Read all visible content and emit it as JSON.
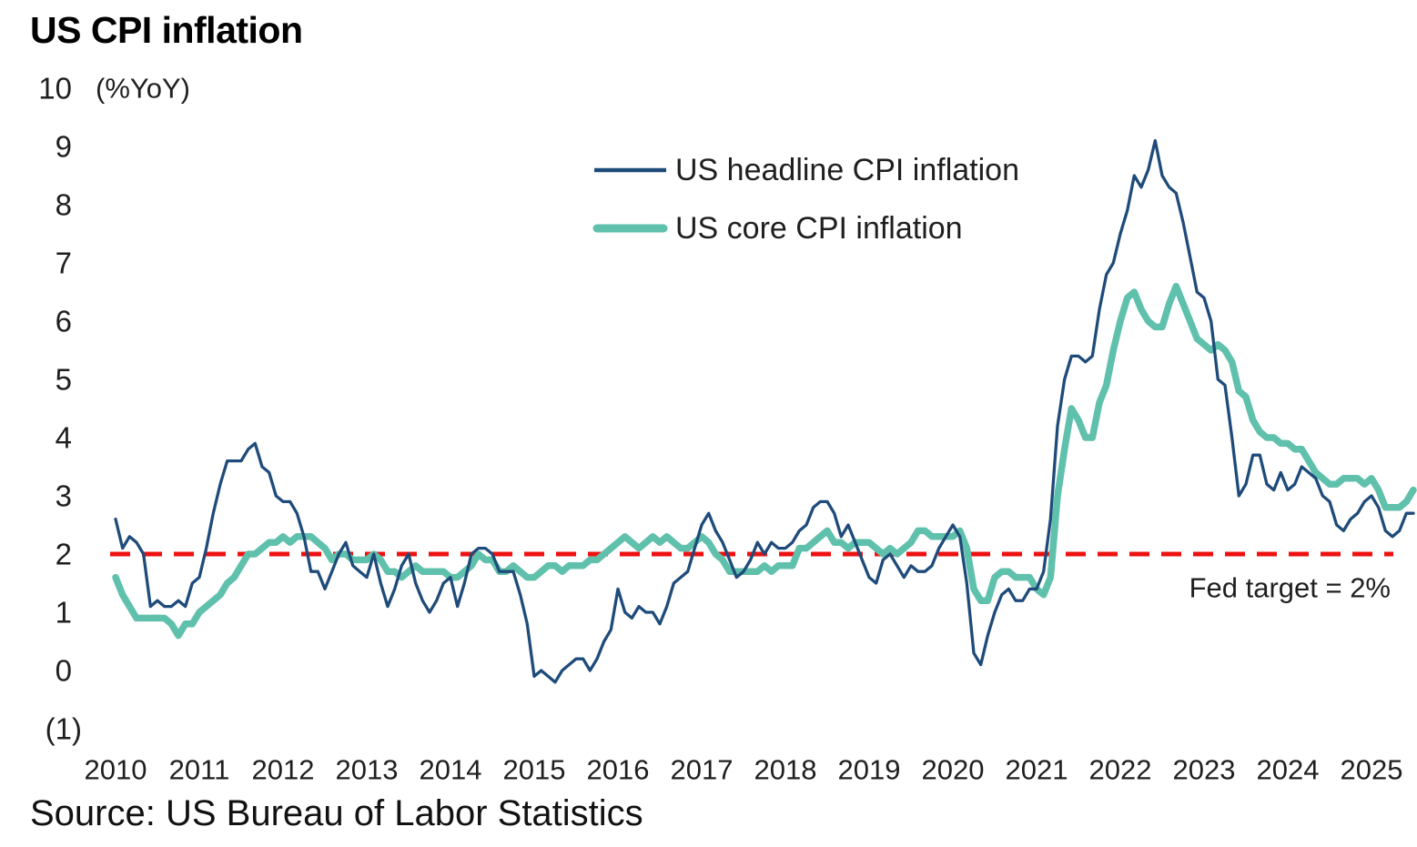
{
  "header": {
    "title": "US CPI inflation"
  },
  "source": {
    "text": "Source: US Bureau of Labor Statistics"
  },
  "chart_data": {
    "type": "line",
    "title": "US CPI inflation",
    "y_unit_label": "(%YoY)",
    "xlabel": "",
    "ylabel": "%YoY",
    "ylim": [
      -1,
      10
    ],
    "grid": false,
    "legend_position": "top-center-inside",
    "y_ticks": [
      {
        "label": "10",
        "value": 10
      },
      {
        "label": "9",
        "value": 9
      },
      {
        "label": "8",
        "value": 8
      },
      {
        "label": "7",
        "value": 7
      },
      {
        "label": "6",
        "value": 6
      },
      {
        "label": "5",
        "value": 5
      },
      {
        "label": "4",
        "value": 4
      },
      {
        "label": "3",
        "value": 3
      },
      {
        "label": "2",
        "value": 2
      },
      {
        "label": "1",
        "value": 1
      },
      {
        "label": "0",
        "value": 0
      },
      {
        "label": "(1)",
        "value": -1
      }
    ],
    "x_tick_labels": [
      "2010",
      "2011",
      "2012",
      "2013",
      "2014",
      "2015",
      "2016",
      "2017",
      "2018",
      "2019",
      "2020",
      "2021",
      "2022",
      "2023",
      "2024",
      "2025"
    ],
    "x_start_month": "2010-01",
    "x_end_month": "2025-07",
    "fed_target": {
      "value": 2,
      "label": "Fed target = 2%",
      "color": "#ee1111",
      "style": "dashed"
    },
    "colors": {
      "headline": "#1e4b7a",
      "core": "#5fc0ac",
      "fed_line": "#ee1111"
    },
    "series": [
      {
        "name": "US headline CPI inflation",
        "color": "#1e4b7a",
        "values": [
          2.6,
          2.1,
          2.3,
          2.2,
          2.0,
          1.1,
          1.2,
          1.1,
          1.1,
          1.2,
          1.1,
          1.5,
          1.6,
          2.1,
          2.7,
          3.2,
          3.6,
          3.6,
          3.6,
          3.8,
          3.9,
          3.5,
          3.4,
          3.0,
          2.9,
          2.9,
          2.7,
          2.3,
          1.7,
          1.7,
          1.4,
          1.7,
          2.0,
          2.2,
          1.8,
          1.7,
          1.6,
          2.0,
          1.5,
          1.1,
          1.4,
          1.8,
          2.0,
          1.5,
          1.2,
          1.0,
          1.2,
          1.5,
          1.6,
          1.1,
          1.5,
          2.0,
          2.1,
          2.1,
          2.0,
          1.7,
          1.7,
          1.7,
          1.3,
          0.8,
          -0.1,
          0.0,
          -0.1,
          -0.2,
          0.0,
          0.1,
          0.2,
          0.2,
          0.0,
          0.2,
          0.5,
          0.7,
          1.4,
          1.0,
          0.9,
          1.1,
          1.0,
          1.0,
          0.8,
          1.1,
          1.5,
          1.6,
          1.7,
          2.1,
          2.5,
          2.7,
          2.4,
          2.2,
          1.9,
          1.6,
          1.7,
          1.9,
          2.2,
          2.0,
          2.2,
          2.1,
          2.1,
          2.2,
          2.4,
          2.5,
          2.8,
          2.9,
          2.9,
          2.7,
          2.3,
          2.5,
          2.2,
          1.9,
          1.6,
          1.5,
          1.9,
          2.0,
          1.8,
          1.6,
          1.8,
          1.7,
          1.7,
          1.8,
          2.1,
          2.3,
          2.5,
          2.3,
          1.5,
          0.3,
          0.1,
          0.6,
          1.0,
          1.3,
          1.4,
          1.2,
          1.2,
          1.4,
          1.4,
          1.7,
          2.6,
          4.2,
          5.0,
          5.4,
          5.4,
          5.3,
          5.4,
          6.2,
          6.8,
          7.0,
          7.5,
          7.9,
          8.5,
          8.3,
          8.6,
          9.1,
          8.5,
          8.3,
          8.2,
          7.7,
          7.1,
          6.5,
          6.4,
          6.0,
          5.0,
          4.9,
          4.0,
          3.0,
          3.2,
          3.7,
          3.7,
          3.2,
          3.1,
          3.4,
          3.1,
          3.2,
          3.5,
          3.4,
          3.3,
          3.0,
          2.9,
          2.5,
          2.4,
          2.6,
          2.7,
          2.9,
          3.0,
          2.8,
          2.4,
          2.3,
          2.4,
          2.7,
          2.7
        ]
      },
      {
        "name": "US core CPI inflation",
        "color": "#5fc0ac",
        "values": [
          1.6,
          1.3,
          1.1,
          0.9,
          0.9,
          0.9,
          0.9,
          0.9,
          0.8,
          0.6,
          0.8,
          0.8,
          1.0,
          1.1,
          1.2,
          1.3,
          1.5,
          1.6,
          1.8,
          2.0,
          2.0,
          2.1,
          2.2,
          2.2,
          2.3,
          2.2,
          2.3,
          2.3,
          2.3,
          2.2,
          2.1,
          1.9,
          2.0,
          2.0,
          1.9,
          1.9,
          1.9,
          2.0,
          1.9,
          1.7,
          1.7,
          1.6,
          1.7,
          1.8,
          1.7,
          1.7,
          1.7,
          1.7,
          1.6,
          1.6,
          1.7,
          1.8,
          2.0,
          1.9,
          1.9,
          1.7,
          1.7,
          1.8,
          1.7,
          1.6,
          1.6,
          1.7,
          1.8,
          1.8,
          1.7,
          1.8,
          1.8,
          1.8,
          1.9,
          1.9,
          2.0,
          2.1,
          2.2,
          2.3,
          2.2,
          2.1,
          2.2,
          2.3,
          2.2,
          2.3,
          2.2,
          2.1,
          2.1,
          2.2,
          2.3,
          2.2,
          2.0,
          1.9,
          1.7,
          1.7,
          1.7,
          1.7,
          1.7,
          1.8,
          1.7,
          1.8,
          1.8,
          1.8,
          2.1,
          2.1,
          2.2,
          2.3,
          2.4,
          2.2,
          2.2,
          2.1,
          2.2,
          2.2,
          2.2,
          2.1,
          2.0,
          2.1,
          2.0,
          2.1,
          2.2,
          2.4,
          2.4,
          2.3,
          2.3,
          2.3,
          2.3,
          2.4,
          2.1,
          1.4,
          1.2,
          1.2,
          1.6,
          1.7,
          1.7,
          1.6,
          1.6,
          1.6,
          1.4,
          1.3,
          1.6,
          3.0,
          3.8,
          4.5,
          4.3,
          4.0,
          4.0,
          4.6,
          4.9,
          5.5,
          6.0,
          6.4,
          6.5,
          6.2,
          6.0,
          5.9,
          5.9,
          6.3,
          6.6,
          6.3,
          6.0,
          5.7,
          5.6,
          5.5,
          5.6,
          5.5,
          5.3,
          4.8,
          4.7,
          4.3,
          4.1,
          4.0,
          4.0,
          3.9,
          3.9,
          3.8,
          3.8,
          3.6,
          3.4,
          3.3,
          3.2,
          3.2,
          3.3,
          3.3,
          3.3,
          3.2,
          3.3,
          3.1,
          2.8,
          2.8,
          2.8,
          2.9,
          3.1
        ]
      }
    ]
  }
}
